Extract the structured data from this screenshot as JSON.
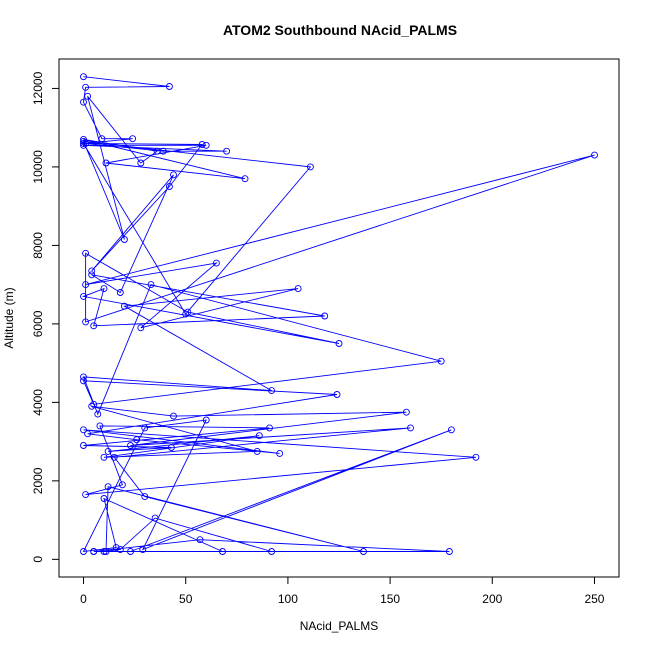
{
  "chart_data": {
    "type": "line",
    "title": "ATOM2 Southbound NAcid_PALMS",
    "xlabel": "NAcid_PALMS",
    "ylabel": "Altitude (m)",
    "xlim": [
      -12,
      262
    ],
    "ylim": [
      -450,
      12750
    ],
    "xticks": [
      0,
      50,
      100,
      150,
      200,
      250
    ],
    "yticks": [
      0,
      2000,
      4000,
      6000,
      8000,
      10000,
      12000
    ],
    "grid": false,
    "legend": "none",
    "series_color": "#0000ff",
    "markers": "open-circle",
    "series": [
      {
        "x": [
          0,
          42,
          1,
          0,
          9,
          24,
          1,
          39,
          70,
          0,
          60,
          11,
          79,
          0,
          36,
          28,
          2,
          20,
          0,
          111,
          50,
          0,
          58,
          42,
          4,
          44,
          18,
          4,
          118,
          5,
          10,
          0,
          125,
          51,
          1,
          1,
          250,
          1,
          65,
          28,
          105,
          20,
          92,
          0,
          7,
          33,
          175,
          5,
          0,
          124,
          2,
          26,
          96,
          0,
          192,
          1,
          19,
          8,
          91,
          0,
          43,
          12,
          86,
          10,
          85,
          4,
          44,
          158,
          23,
          160,
          15,
          30,
          137,
          12,
          11,
          179,
          57,
          5,
          68,
          10,
          16,
          0,
          30,
          60,
          29,
          180,
          23,
          92,
          35,
          18,
          10,
          5
        ],
        "y": [
          12300,
          12050,
          12030,
          11650,
          10720,
          10720,
          10600,
          10400,
          10400,
          10550,
          10550,
          10100,
          9700,
          10700,
          10400,
          10100,
          11800,
          8150,
          10650,
          10000,
          6250,
          10600,
          10570,
          9500,
          7350,
          9800,
          6800,
          7250,
          6200,
          5950,
          6900,
          6700,
          5500,
          6300,
          7800,
          6050,
          10300,
          7000,
          7550,
          5900,
          6900,
          6450,
          4300,
          4650,
          3700,
          7000,
          5050,
          3950,
          4550,
          4200,
          3200,
          3050,
          2700,
          3300,
          2600,
          1650,
          1900,
          3400,
          3350,
          2900,
          2850,
          2750,
          3150,
          2600,
          2750,
          3900,
          3650,
          3750,
          2900,
          3350,
          2600,
          1600,
          200,
          1850,
          200,
          200,
          500,
          200,
          200,
          1550,
          300,
          200,
          3350,
          3550,
          250,
          3300,
          200,
          200,
          1050,
          250,
          200,
          200
        ]
      }
    ]
  }
}
